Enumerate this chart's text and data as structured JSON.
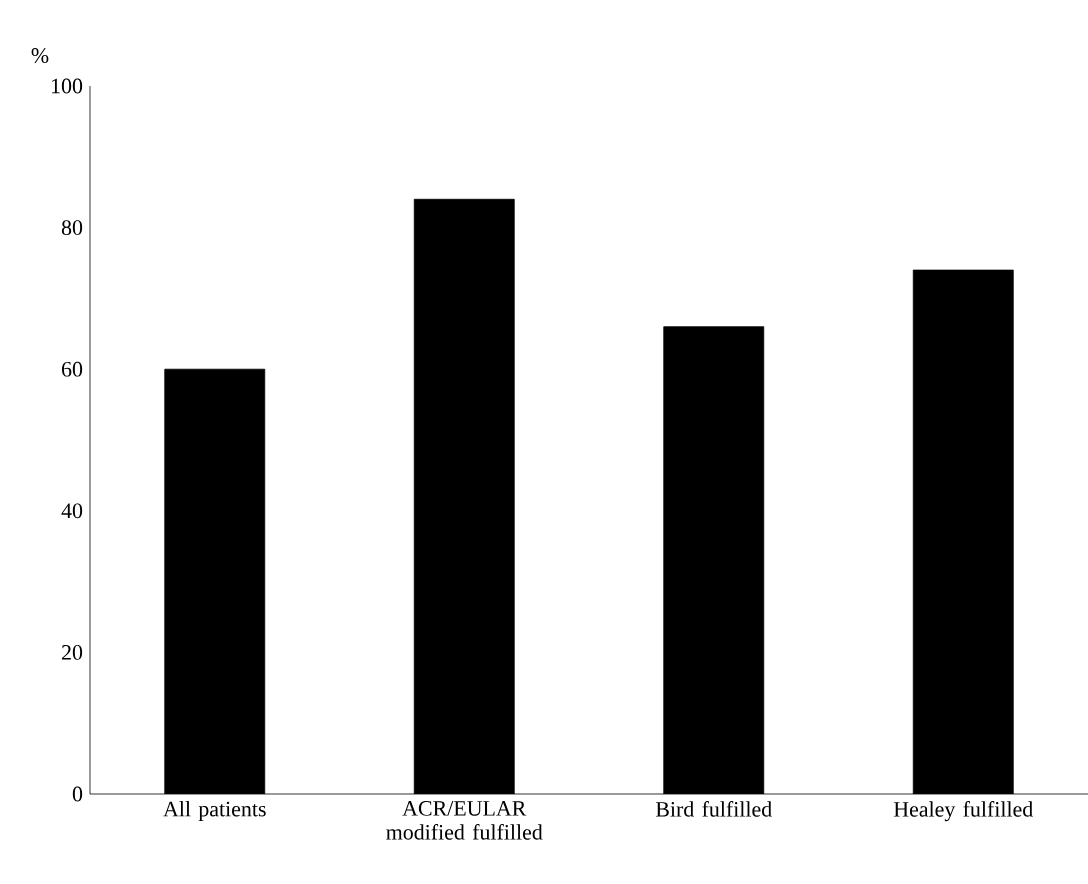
{
  "chart_data": {
    "type": "bar",
    "ylabel": "%",
    "categories": [
      "All patients",
      "ACR/EULAR modified fulfilled",
      "Bird fulfilled",
      "Healey fulfilled"
    ],
    "values": [
      60,
      84,
      66,
      74
    ],
    "color": "#000000",
    "ylim": [
      0,
      100
    ],
    "yticks": [
      0,
      20,
      40,
      60,
      80,
      100
    ]
  }
}
